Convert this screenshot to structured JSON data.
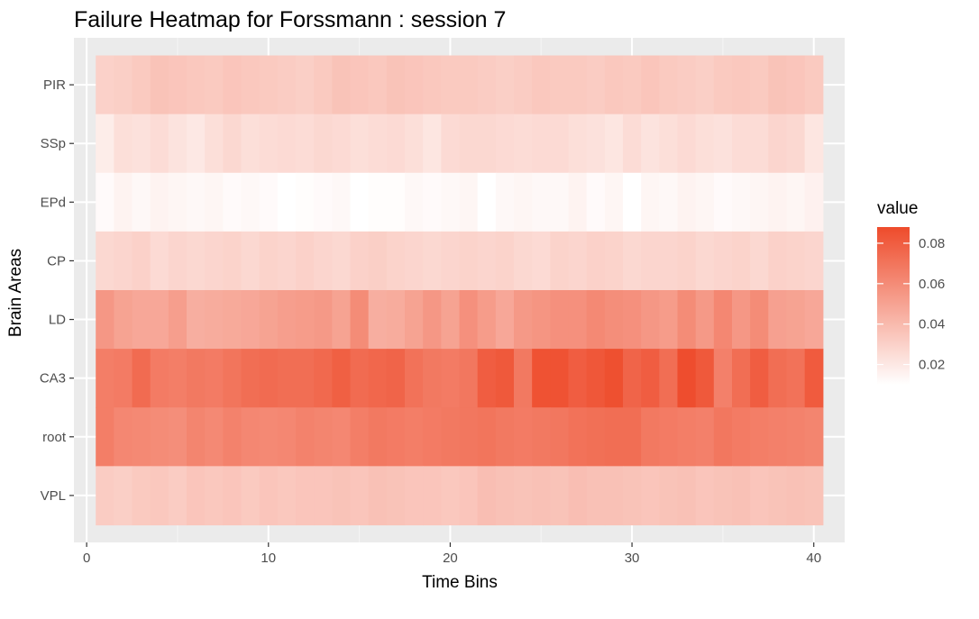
{
  "chart_data": {
    "type": "heatmap",
    "title": "Failure Heatmap for Forssmann : session 7",
    "xlabel": "Time Bins",
    "ylabel": "Brain Areas",
    "x": [
      1,
      2,
      3,
      4,
      5,
      6,
      7,
      8,
      9,
      10,
      11,
      12,
      13,
      14,
      15,
      16,
      17,
      18,
      19,
      20,
      21,
      22,
      23,
      24,
      25,
      26,
      27,
      28,
      29,
      30,
      31,
      32,
      33,
      34,
      35,
      36,
      37,
      38,
      39,
      40
    ],
    "y_categories": [
      "PIR",
      "SSp",
      "EPd",
      "CP",
      "LD",
      "CA3",
      "root",
      "VPL"
    ],
    "x_ticks": [
      0,
      10,
      20,
      30,
      40
    ],
    "x_tick_labels": [
      "0",
      "10",
      "20",
      "30",
      "40"
    ],
    "xlim": [
      -0.7,
      41.7
    ],
    "series": [
      {
        "name": "PIR",
        "values": [
          0.03,
          0.031,
          0.033,
          0.036,
          0.035,
          0.034,
          0.033,
          0.035,
          0.034,
          0.033,
          0.032,
          0.031,
          0.033,
          0.036,
          0.035,
          0.034,
          0.036,
          0.035,
          0.034,
          0.033,
          0.033,
          0.032,
          0.031,
          0.032,
          0.034,
          0.033,
          0.033,
          0.032,
          0.034,
          0.033,
          0.035,
          0.033,
          0.032,
          0.031,
          0.033,
          0.034,
          0.033,
          0.036,
          0.035,
          0.033
        ]
      },
      {
        "name": "SSp",
        "values": [
          0.018,
          0.024,
          0.023,
          0.025,
          0.022,
          0.02,
          0.024,
          0.027,
          0.024,
          0.025,
          0.026,
          0.025,
          0.027,
          0.026,
          0.024,
          0.025,
          0.026,
          0.024,
          0.021,
          0.026,
          0.027,
          0.027,
          0.026,
          0.025,
          0.026,
          0.026,
          0.024,
          0.023,
          0.021,
          0.025,
          0.022,
          0.024,
          0.026,
          0.024,
          0.023,
          0.025,
          0.025,
          0.028,
          0.027,
          0.021
        ]
      },
      {
        "name": "EPd",
        "values": [
          0.012,
          0.015,
          0.013,
          0.015,
          0.014,
          0.013,
          0.014,
          0.012,
          0.013,
          0.012,
          0.01,
          0.011,
          0.012,
          0.013,
          0.01,
          0.011,
          0.011,
          0.013,
          0.012,
          0.013,
          0.014,
          0.01,
          0.013,
          0.014,
          0.013,
          0.013,
          0.015,
          0.012,
          0.014,
          0.01,
          0.014,
          0.013,
          0.015,
          0.014,
          0.012,
          0.013,
          0.014,
          0.015,
          0.014,
          0.016
        ]
      },
      {
        "name": "CP",
        "values": [
          0.027,
          0.028,
          0.03,
          0.026,
          0.028,
          0.027,
          0.028,
          0.029,
          0.027,
          0.029,
          0.028,
          0.03,
          0.028,
          0.027,
          0.03,
          0.031,
          0.029,
          0.028,
          0.027,
          0.028,
          0.029,
          0.028,
          0.029,
          0.027,
          0.026,
          0.029,
          0.028,
          0.03,
          0.029,
          0.027,
          0.028,
          0.028,
          0.029,
          0.027,
          0.028,
          0.029,
          0.027,
          0.03,
          0.029,
          0.028
        ]
      },
      {
        "name": "LD",
        "values": [
          0.055,
          0.05,
          0.048,
          0.048,
          0.052,
          0.045,
          0.046,
          0.047,
          0.048,
          0.05,
          0.052,
          0.053,
          0.054,
          0.05,
          0.06,
          0.045,
          0.046,
          0.05,
          0.055,
          0.05,
          0.058,
          0.053,
          0.048,
          0.054,
          0.056,
          0.058,
          0.058,
          0.061,
          0.059,
          0.058,
          0.055,
          0.053,
          0.06,
          0.054,
          0.062,
          0.055,
          0.06,
          0.051,
          0.05,
          0.048
        ]
      },
      {
        "name": "CA3",
        "values": [
          0.066,
          0.067,
          0.074,
          0.067,
          0.066,
          0.068,
          0.067,
          0.07,
          0.073,
          0.074,
          0.073,
          0.073,
          0.075,
          0.079,
          0.074,
          0.076,
          0.077,
          0.071,
          0.068,
          0.067,
          0.069,
          0.08,
          0.082,
          0.068,
          0.085,
          0.085,
          0.08,
          0.083,
          0.086,
          0.077,
          0.08,
          0.073,
          0.087,
          0.082,
          0.065,
          0.073,
          0.08,
          0.073,
          0.071,
          0.081
        ]
      },
      {
        "name": "root",
        "values": [
          0.066,
          0.062,
          0.061,
          0.06,
          0.059,
          0.063,
          0.061,
          0.064,
          0.062,
          0.061,
          0.062,
          0.064,
          0.063,
          0.062,
          0.066,
          0.068,
          0.067,
          0.066,
          0.067,
          0.068,
          0.069,
          0.07,
          0.068,
          0.067,
          0.068,
          0.069,
          0.071,
          0.072,
          0.073,
          0.073,
          0.068,
          0.067,
          0.066,
          0.065,
          0.069,
          0.067,
          0.066,
          0.065,
          0.064,
          0.063
        ]
      },
      {
        "name": "VPL",
        "values": [
          0.032,
          0.031,
          0.033,
          0.034,
          0.032,
          0.035,
          0.034,
          0.035,
          0.033,
          0.035,
          0.034,
          0.035,
          0.035,
          0.036,
          0.035,
          0.037,
          0.036,
          0.035,
          0.035,
          0.034,
          0.035,
          0.038,
          0.037,
          0.036,
          0.037,
          0.036,
          0.038,
          0.037,
          0.037,
          0.036,
          0.035,
          0.036,
          0.037,
          0.035,
          0.036,
          0.037,
          0.035,
          0.036,
          0.037,
          0.036
        ]
      }
    ],
    "legend": {
      "title": "value",
      "position": "right",
      "breaks": [
        0.02,
        0.04,
        0.06,
        0.08
      ],
      "break_labels": [
        "0.02",
        "0.04",
        "0.06",
        "0.08"
      ],
      "range": [
        0.01,
        0.088
      ]
    },
    "colors": {
      "low": "#ffffff",
      "high": "#ee4b2b",
      "panel_background": "#ebebeb",
      "grid_major": "#ffffff",
      "grid_minor": "#f5f5f5",
      "tick_text": "#4d4d4d",
      "tick_mark": "#333333"
    },
    "grid": true
  }
}
